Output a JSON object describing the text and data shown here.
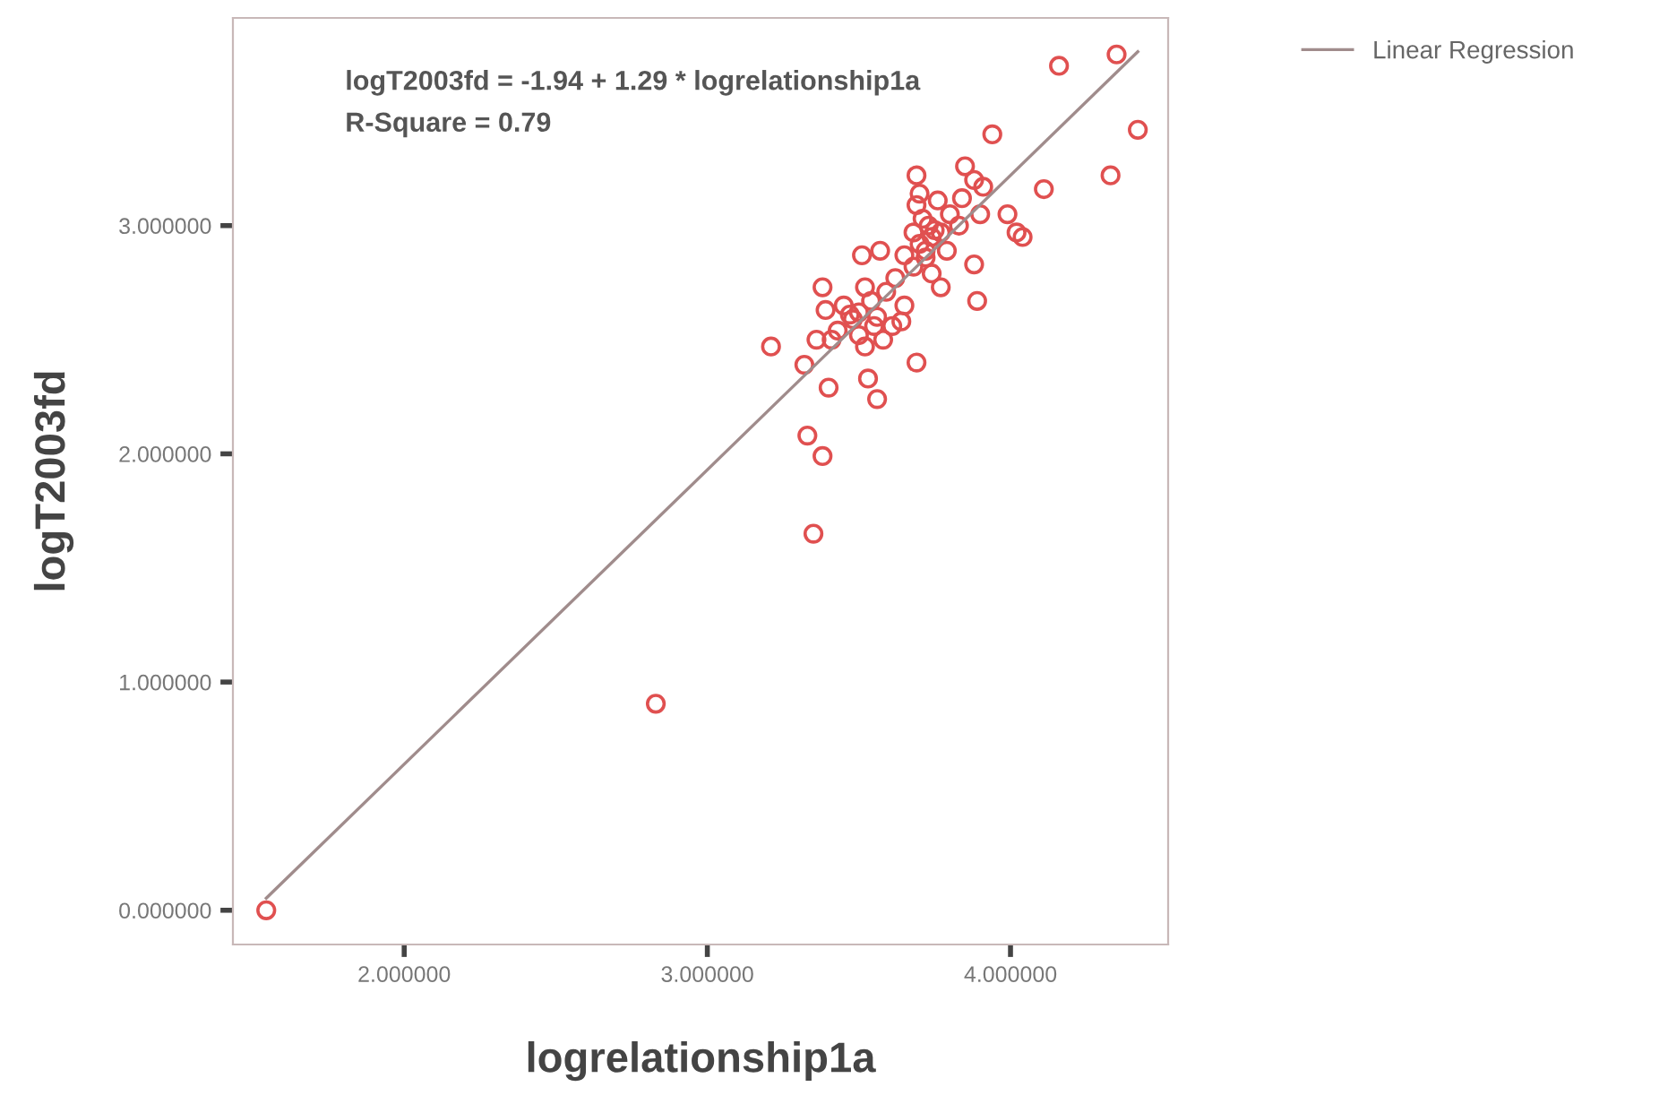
{
  "chart_data": {
    "type": "scatter",
    "xlabel": "logrelationship1a",
    "ylabel": "logT2003fd",
    "xlim": [
      1.435,
      4.52
    ],
    "ylim": [
      -0.15,
      3.91
    ],
    "xticks": [
      {
        "value": 2,
        "label": "2.000000"
      },
      {
        "value": 3,
        "label": "3.000000"
      },
      {
        "value": 4,
        "label": "4.000000"
      }
    ],
    "yticks": [
      {
        "value": 0,
        "label": "0.000000"
      },
      {
        "value": 1,
        "label": "1.000000"
      },
      {
        "value": 2,
        "label": "2.000000"
      },
      {
        "value": 3,
        "label": "3.000000"
      }
    ],
    "grid": false,
    "legend": "top right",
    "annotations": [
      "logT2003fd = -1.94 + 1.29 * logrelationship1a",
      "R-Square = 0.79"
    ],
    "series": [
      {
        "marker": "circle",
        "color": "#e05050",
        "x": [
          1.545,
          2.83,
          3.35,
          3.33,
          3.38,
          3.21,
          3.32,
          3.4,
          3.56,
          3.53,
          3.69,
          3.38,
          4.16,
          4.35,
          4.42,
          4.33,
          4.11,
          3.94,
          3.99,
          4.02,
          4.04,
          3.89,
          3.88,
          3.88,
          3.85,
          3.69,
          3.7,
          3.84,
          3.9,
          3.83,
          3.79,
          3.74,
          3.77,
          3.91,
          3.51,
          3.57,
          3.65,
          3.62,
          3.52,
          3.45,
          3.48,
          3.54,
          3.59,
          3.65,
          3.61,
          3.55,
          3.5,
          3.43,
          3.39,
          3.41,
          3.52,
          3.58,
          3.64,
          3.68,
          3.71,
          3.74,
          3.72,
          3.68,
          3.77,
          3.8,
          3.69,
          3.76,
          3.73,
          3.36,
          3.47,
          3.5,
          3.56,
          3.7,
          3.75,
          3.72
        ],
        "values": [
          0.0,
          0.905,
          1.65,
          2.08,
          1.99,
          2.47,
          2.39,
          2.29,
          2.24,
          2.33,
          2.4,
          2.73,
          3.7,
          3.75,
          3.42,
          3.22,
          3.16,
          3.4,
          3.05,
          2.97,
          2.95,
          2.67,
          2.83,
          3.2,
          3.26,
          3.22,
          3.14,
          3.12,
          3.05,
          3.0,
          2.89,
          2.79,
          2.73,
          3.17,
          2.87,
          2.89,
          2.87,
          2.77,
          2.73,
          2.65,
          2.59,
          2.67,
          2.71,
          2.65,
          2.56,
          2.56,
          2.52,
          2.54,
          2.63,
          2.5,
          2.47,
          2.5,
          2.58,
          2.97,
          3.03,
          2.95,
          2.89,
          2.82,
          2.97,
          3.05,
          3.09,
          3.11,
          3.0,
          2.5,
          2.61,
          2.62,
          2.6,
          2.92,
          2.98,
          2.86
        ]
      },
      {
        "type": "line",
        "name": "Linear Regression",
        "color": "#a08c8c",
        "x": [
          1.545,
          4.42
        ],
        "values": [
          0.053,
          3.762
        ]
      }
    ]
  }
}
